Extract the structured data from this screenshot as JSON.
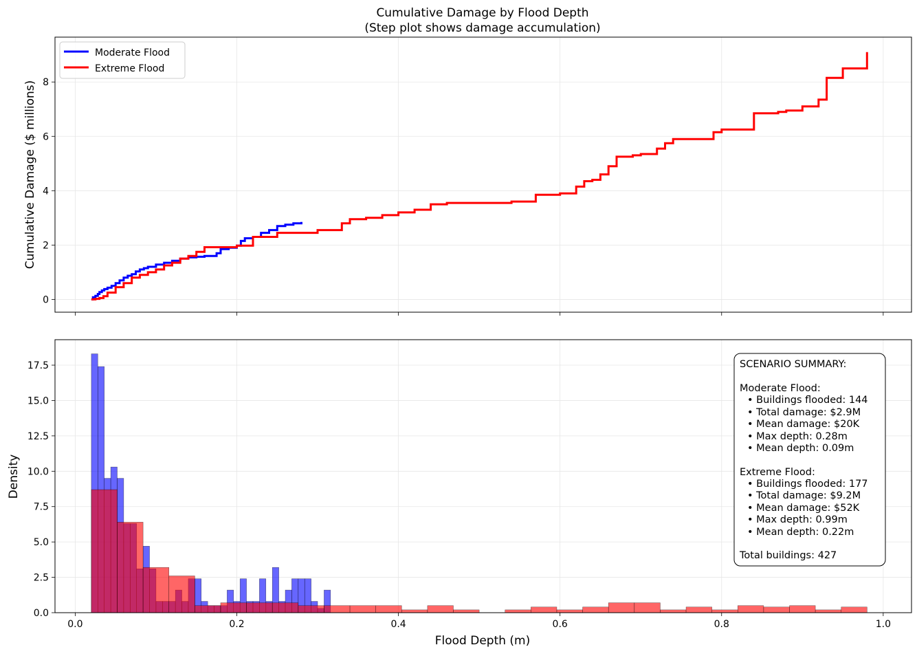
{
  "colors": {
    "moderate": "#0000ff",
    "extreme": "#ff0000"
  },
  "chart_data": [
    {
      "type": "line",
      "title": "Cumulative Damage by Flood Depth",
      "subtitle": "(Step plot shows damage accumulation)",
      "xlabel": "",
      "ylabel": "Cumulative Damage ($ millions)",
      "xlim": [
        -0.025,
        1.035
      ],
      "ylim": [
        -0.47,
        9.65
      ],
      "xticks": [
        0.0,
        0.2,
        0.4,
        0.6,
        0.8,
        1.0
      ],
      "yticks": [
        0,
        2,
        4,
        6,
        8
      ],
      "ytick_labels": [
        "0",
        "2",
        "4",
        "6",
        "8"
      ],
      "grid": true,
      "legend": "top-left",
      "series": [
        {
          "name": "Moderate Flood",
          "x": [
            0.02,
            0.022,
            0.025,
            0.028,
            0.03,
            0.033,
            0.036,
            0.04,
            0.045,
            0.05,
            0.055,
            0.06,
            0.065,
            0.07,
            0.075,
            0.08,
            0.085,
            0.09,
            0.1,
            0.11,
            0.12,
            0.13,
            0.14,
            0.15,
            0.16,
            0.17,
            0.175,
            0.18,
            0.19,
            0.2,
            0.205,
            0.21,
            0.22,
            0.23,
            0.24,
            0.25,
            0.26,
            0.27,
            0.28
          ],
          "y": [
            0.0,
            0.08,
            0.13,
            0.2,
            0.27,
            0.33,
            0.38,
            0.43,
            0.5,
            0.6,
            0.7,
            0.8,
            0.87,
            0.93,
            1.03,
            1.1,
            1.15,
            1.2,
            1.28,
            1.35,
            1.42,
            1.5,
            1.55,
            1.57,
            1.6,
            1.6,
            1.7,
            1.85,
            1.9,
            1.98,
            2.15,
            2.25,
            2.3,
            2.45,
            2.55,
            2.7,
            2.75,
            2.8,
            2.85
          ]
        },
        {
          "name": "Extreme Flood",
          "x": [
            0.02,
            0.025,
            0.03,
            0.035,
            0.04,
            0.05,
            0.06,
            0.07,
            0.08,
            0.09,
            0.1,
            0.11,
            0.12,
            0.13,
            0.14,
            0.15,
            0.16,
            0.2,
            0.22,
            0.25,
            0.3,
            0.33,
            0.34,
            0.36,
            0.38,
            0.4,
            0.42,
            0.44,
            0.46,
            0.5,
            0.54,
            0.57,
            0.6,
            0.62,
            0.63,
            0.64,
            0.65,
            0.66,
            0.67,
            0.69,
            0.7,
            0.72,
            0.73,
            0.74,
            0.77,
            0.79,
            0.8,
            0.82,
            0.84,
            0.87,
            0.88,
            0.9,
            0.92,
            0.93,
            0.95,
            0.97,
            0.98
          ],
          "y": [
            0.0,
            0.02,
            0.05,
            0.12,
            0.25,
            0.45,
            0.6,
            0.8,
            0.9,
            1.0,
            1.1,
            1.25,
            1.35,
            1.5,
            1.6,
            1.75,
            1.92,
            1.98,
            2.3,
            2.45,
            2.55,
            2.8,
            2.95,
            3.0,
            3.1,
            3.2,
            3.3,
            3.5,
            3.55,
            3.55,
            3.6,
            3.85,
            3.9,
            4.15,
            4.35,
            4.4,
            4.6,
            4.9,
            5.25,
            5.3,
            5.35,
            5.55,
            5.75,
            5.9,
            5.9,
            6.15,
            6.25,
            6.25,
            6.85,
            6.9,
            6.95,
            7.1,
            7.35,
            8.15,
            8.5,
            8.5,
            9.1
          ]
        }
      ]
    },
    {
      "type": "bar",
      "title": "",
      "xlabel": "Flood Depth (m)",
      "ylabel": "Density",
      "xlim": [
        -0.025,
        1.035
      ],
      "ylim": [
        0,
        19.3
      ],
      "xticks": [
        0.0,
        0.2,
        0.4,
        0.6,
        0.8,
        1.0
      ],
      "xtick_labels": [
        "0.0",
        "0.2",
        "0.4",
        "0.6",
        "0.8",
        "1.0"
      ],
      "yticks": [
        0.0,
        2.5,
        5.0,
        7.5,
        10.0,
        12.5,
        15.0,
        17.5
      ],
      "ytick_labels": [
        "0.0",
        "2.5",
        "5.0",
        "7.5",
        "10.0",
        "12.5",
        "15.0",
        "17.5"
      ],
      "grid": true,
      "series": [
        {
          "name": "Moderate Flood",
          "bin_start": 0.02,
          "bin_width": 0.008,
          "values": [
            18.3,
            17.4,
            9.5,
            10.3,
            9.5,
            6.3,
            6.3,
            3.1,
            4.7,
            3.1,
            0.8,
            0.8,
            0.8,
            1.6,
            0.8,
            2.4,
            2.4,
            0.8,
            0.5,
            0.5,
            0.5,
            1.6,
            0.8,
            2.4,
            0.8,
            0.8,
            2.4,
            0.8,
            3.2,
            0.8,
            1.6,
            2.4,
            2.4,
            2.4,
            0.8,
            0.3,
            1.6
          ]
        },
        {
          "name": "Extreme Flood",
          "bin_start": 0.02,
          "bin_width": 0.032,
          "values": [
            8.7,
            6.4,
            3.2,
            2.6,
            0.5,
            0.7,
            0.7,
            0.7,
            0.5,
            0.5,
            0.5,
            0.5,
            0.2,
            0.5,
            0.2,
            0.0,
            0.2,
            0.4,
            0.2,
            0.4,
            0.7,
            0.7,
            0.2,
            0.4,
            0.2,
            0.5,
            0.4,
            0.5,
            0.2,
            0.4
          ]
        }
      ]
    }
  ],
  "summary": {
    "heading": "SCENARIO SUMMARY:",
    "moderate": {
      "heading": "Moderate Flood:",
      "items": [
        "• Buildings flooded: 144",
        "• Total damage: $2.9M",
        "• Mean damage: $20K",
        "• Max depth: 0.28m",
        "• Mean depth: 0.09m"
      ]
    },
    "extreme": {
      "heading": "Extreme Flood:",
      "items": [
        "• Buildings flooded: 177",
        "• Total damage: $9.2M",
        "• Mean damage: $52K",
        "• Max depth: 0.99m",
        "• Mean depth: 0.22m"
      ]
    },
    "total": "Total buildings: 427"
  }
}
